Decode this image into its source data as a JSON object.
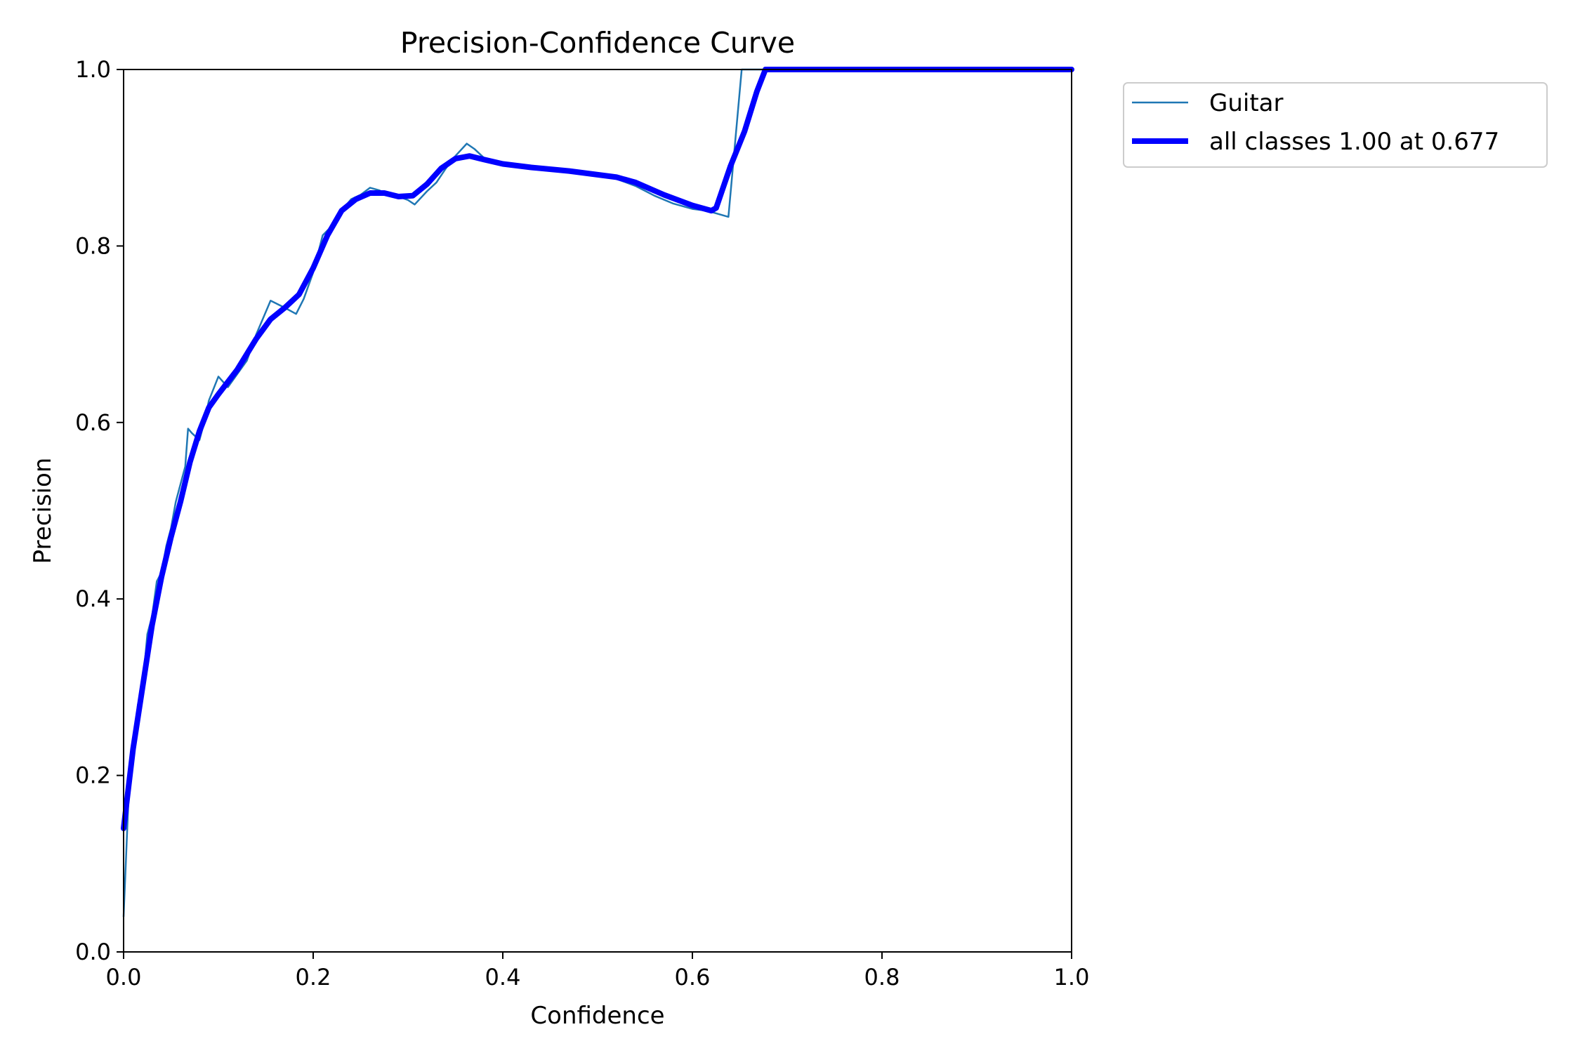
{
  "chart_data": {
    "type": "line",
    "title": "Precision-Confidence Curve",
    "xlabel": "Confidence",
    "ylabel": "Precision",
    "xlim": [
      0,
      1
    ],
    "ylim": [
      0,
      1
    ],
    "xticks": [
      "0.0",
      "0.2",
      "0.4",
      "0.6",
      "0.8",
      "1.0"
    ],
    "yticks": [
      "0.0",
      "0.2",
      "0.4",
      "0.6",
      "0.8",
      "1.0"
    ],
    "grid": false,
    "legend_position": "outside-upper-right",
    "series": [
      {
        "name": "Guitar",
        "color": "#1f77b4",
        "x": [
          0.0,
          0.005,
          0.01,
          0.015,
          0.02,
          0.025,
          0.03,
          0.035,
          0.04,
          0.045,
          0.05,
          0.055,
          0.06,
          0.065,
          0.068,
          0.072,
          0.08,
          0.085,
          0.09,
          0.1,
          0.11,
          0.12,
          0.13,
          0.14,
          0.155,
          0.17,
          0.182,
          0.19,
          0.2,
          0.21,
          0.22,
          0.23,
          0.24,
          0.25,
          0.26,
          0.27,
          0.28,
          0.29,
          0.3,
          0.307,
          0.32,
          0.33,
          0.34,
          0.35,
          0.362,
          0.37,
          0.38,
          0.39,
          0.4,
          0.42,
          0.44,
          0.46,
          0.48,
          0.5,
          0.52,
          0.54,
          0.56,
          0.58,
          0.6,
          0.615,
          0.638,
          0.652,
          0.66,
          0.68,
          0.7,
          0.75,
          0.8,
          0.9,
          1.0
        ],
        "values": [
          0.04,
          0.17,
          0.22,
          0.28,
          0.3,
          0.36,
          0.38,
          0.42,
          0.43,
          0.46,
          0.48,
          0.51,
          0.53,
          0.55,
          0.593,
          0.588,
          0.58,
          0.6,
          0.625,
          0.652,
          0.64,
          0.655,
          0.67,
          0.7,
          0.738,
          0.73,
          0.723,
          0.74,
          0.77,
          0.812,
          0.823,
          0.84,
          0.853,
          0.858,
          0.866,
          0.863,
          0.858,
          0.856,
          0.852,
          0.847,
          0.862,
          0.872,
          0.888,
          0.902,
          0.916,
          0.91,
          0.9,
          0.896,
          0.893,
          0.89,
          0.887,
          0.885,
          0.883,
          0.88,
          0.876,
          0.868,
          0.857,
          0.848,
          0.842,
          0.84,
          0.833,
          1.0,
          1.0,
          1.0,
          1.0,
          1.0,
          1.0,
          1.0,
          1.0
        ]
      },
      {
        "name": "all classes 1.00 at 0.677",
        "color": "#0000ff",
        "x": [
          0.0,
          0.01,
          0.02,
          0.03,
          0.04,
          0.05,
          0.06,
          0.07,
          0.08,
          0.09,
          0.1,
          0.12,
          0.14,
          0.155,
          0.17,
          0.185,
          0.2,
          0.215,
          0.23,
          0.245,
          0.26,
          0.275,
          0.29,
          0.305,
          0.32,
          0.335,
          0.35,
          0.365,
          0.38,
          0.4,
          0.43,
          0.47,
          0.52,
          0.54,
          0.57,
          0.6,
          0.62,
          0.625,
          0.64,
          0.655,
          0.668,
          0.677,
          0.7,
          0.8,
          0.9,
          1.0
        ],
        "values": [
          0.14,
          0.23,
          0.3,
          0.37,
          0.425,
          0.47,
          0.51,
          0.555,
          0.59,
          0.617,
          0.632,
          0.66,
          0.695,
          0.717,
          0.73,
          0.745,
          0.775,
          0.812,
          0.84,
          0.853,
          0.86,
          0.86,
          0.856,
          0.857,
          0.87,
          0.888,
          0.899,
          0.902,
          0.898,
          0.893,
          0.889,
          0.885,
          0.878,
          0.872,
          0.858,
          0.846,
          0.84,
          0.843,
          0.89,
          0.93,
          0.975,
          1.0,
          1.0,
          1.0,
          1.0,
          1.0
        ]
      }
    ]
  }
}
